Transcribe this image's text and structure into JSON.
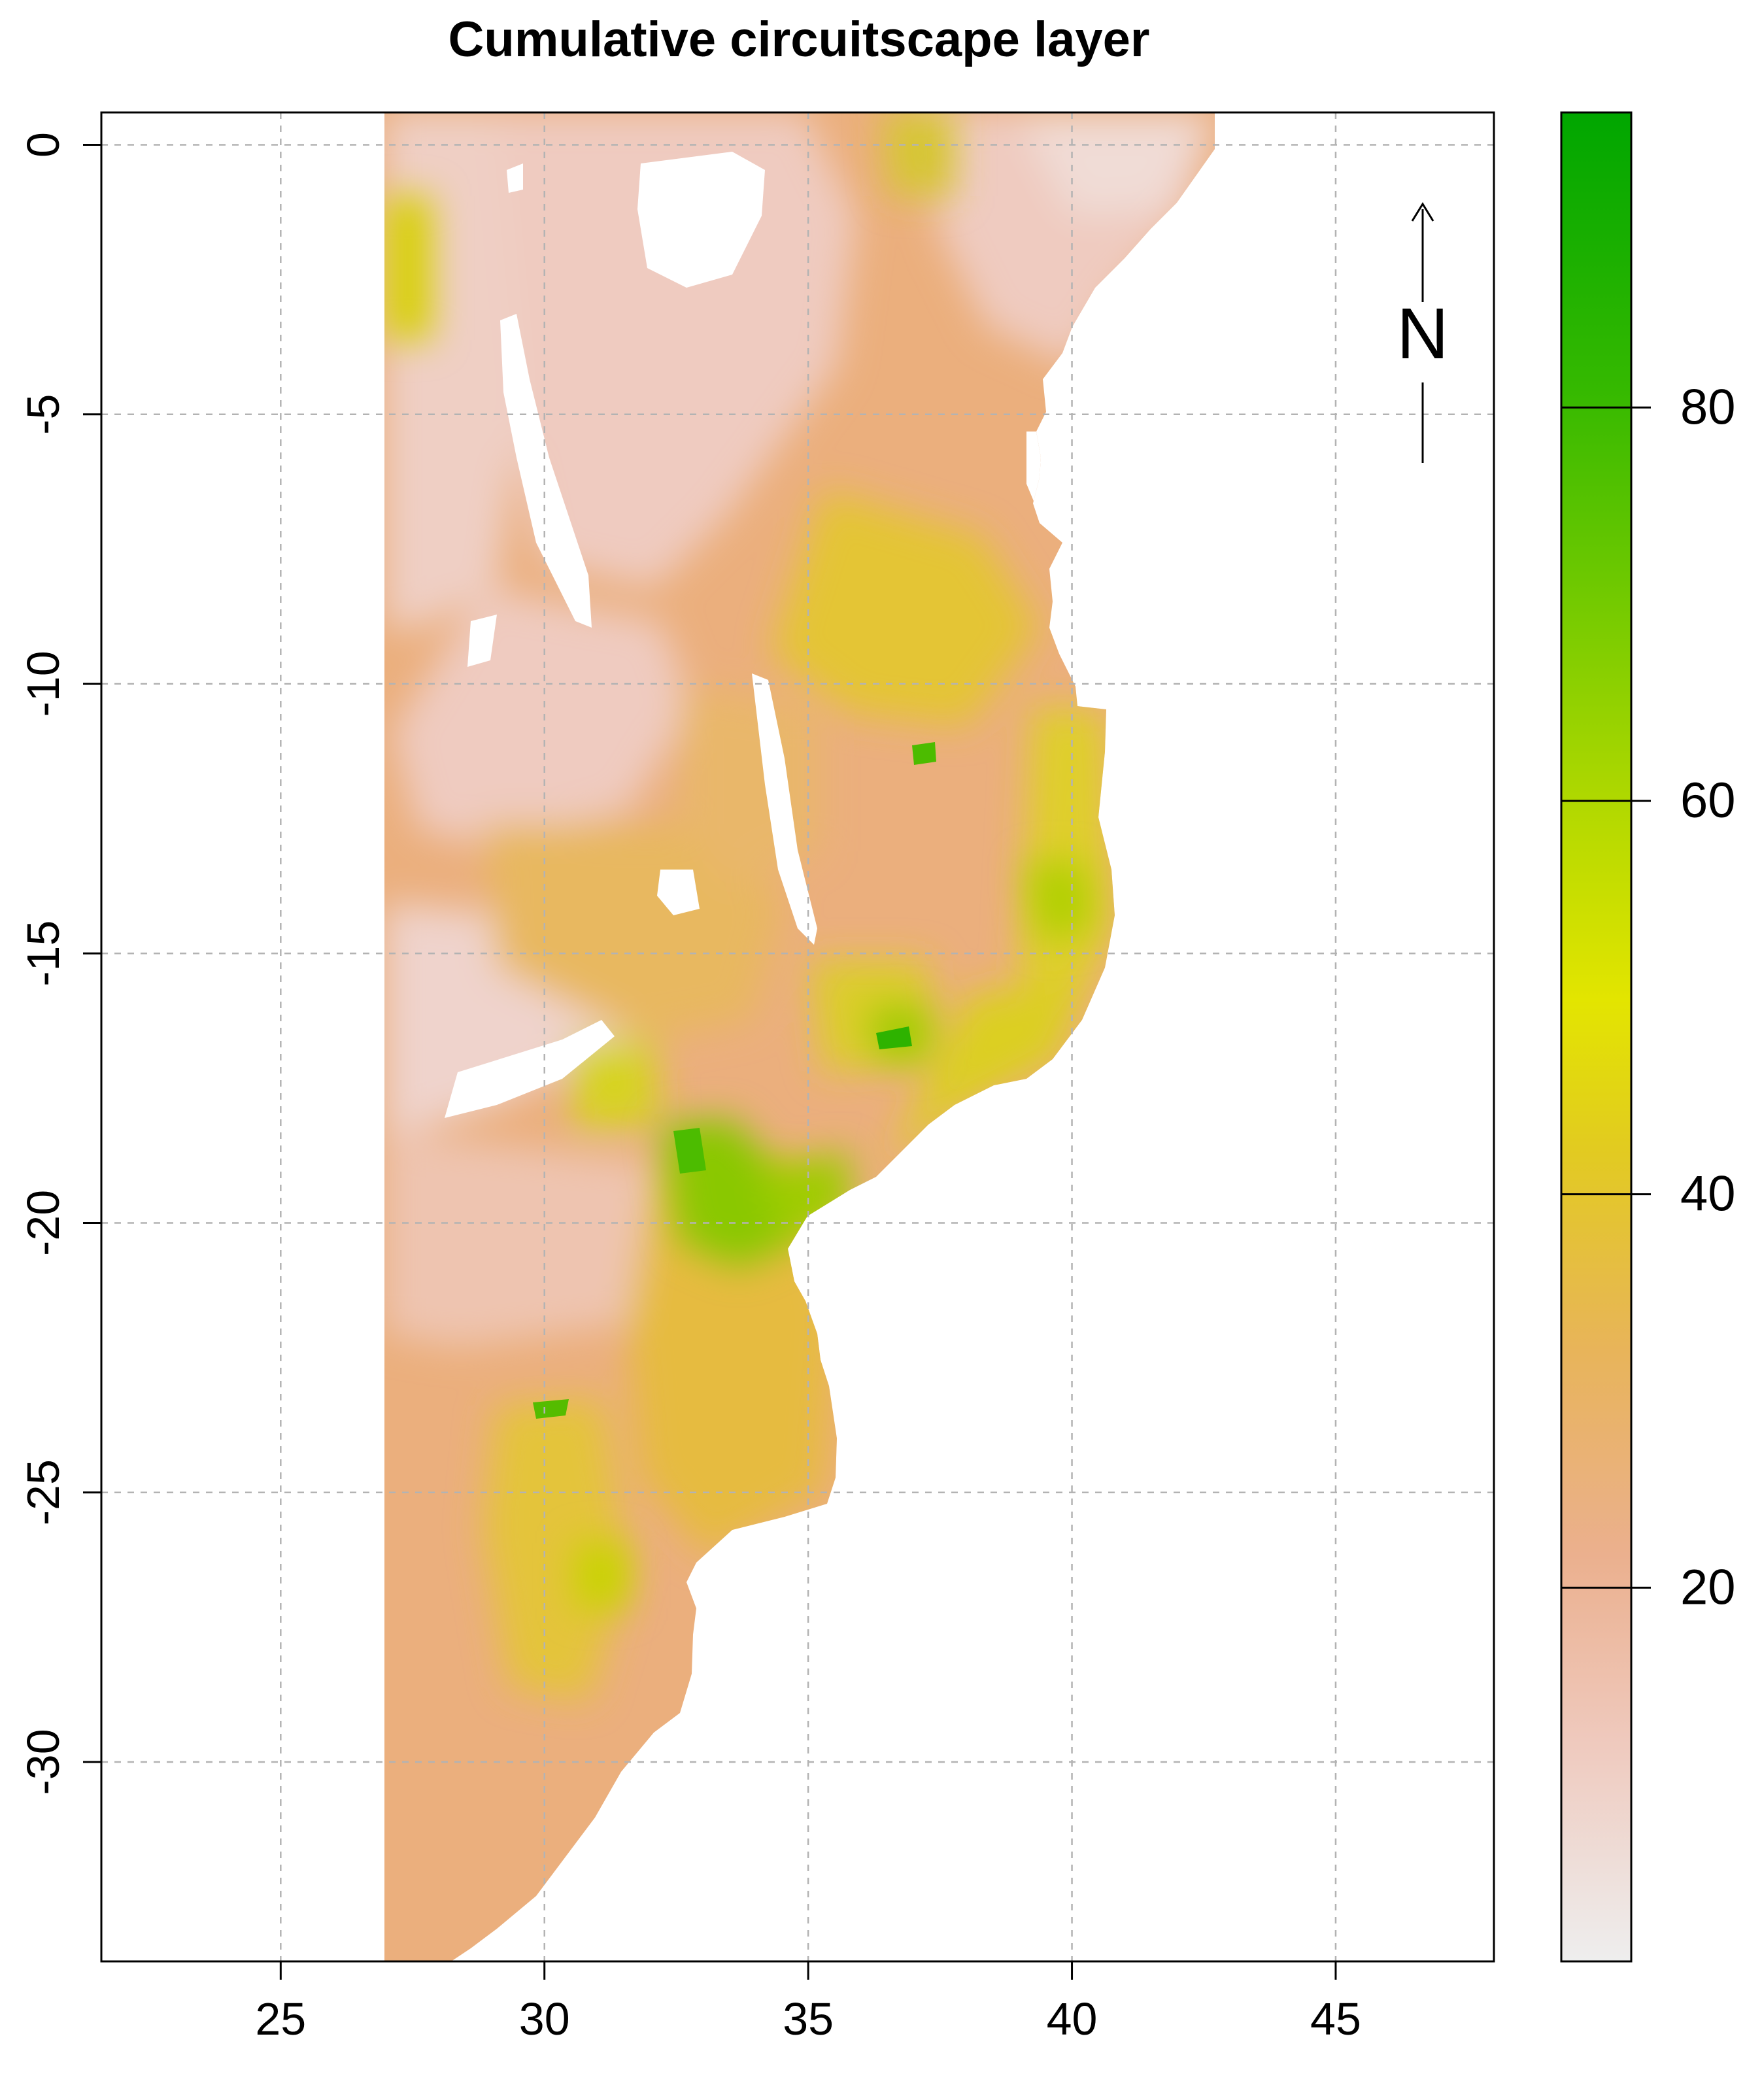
{
  "chart_data": {
    "type": "heatmap",
    "title": "Cumulative circuitscape layer",
    "xlabel": "",
    "ylabel": "",
    "xlim": [
      21.6,
      48.0
    ],
    "ylim": [
      -33.7,
      0.6
    ],
    "x_ticks": [
      25,
      30,
      35,
      40,
      45
    ],
    "x_tick_labels": [
      "25",
      "30",
      "35",
      "40",
      "45"
    ],
    "y_ticks": [
      0,
      -5,
      -10,
      -15,
      -20,
      -25,
      -30
    ],
    "y_tick_labels": [
      "0",
      "-5",
      "-10",
      "-15",
      "-20",
      "-25",
      "-30"
    ],
    "grid": true,
    "north_arrow_label": "N",
    "colorbar": {
      "range": [
        1,
        95
      ],
      "ticks": [
        20,
        40,
        60,
        80
      ],
      "tick_labels": [
        "20",
        "40",
        "60",
        "80"
      ],
      "colors": [
        "#eeeeee",
        "#efc9bd",
        "#ebb08e",
        "#e8b45a",
        "#e2cb20",
        "#e3e500",
        "#b4d900",
        "#7ccc00",
        "#35b900",
        "#00a600"
      ]
    },
    "extent": {
      "lon_min": 27.0,
      "lon_max": 42.7,
      "lat_min": -33.7,
      "lat_max": 0.6
    }
  }
}
